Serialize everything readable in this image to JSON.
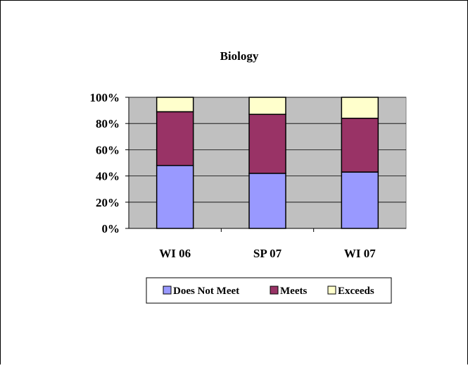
{
  "chart_data": {
    "type": "bar",
    "stacked": true,
    "percent_stacked": true,
    "title": "Biology",
    "xlabel": "",
    "ylabel": "",
    "categories": [
      "WI 06",
      "SP 07",
      "WI 07"
    ],
    "series": [
      {
        "name": "Does Not Meet",
        "color": "#9999ff",
        "values": [
          48,
          42,
          43
        ]
      },
      {
        "name": "Meets",
        "color": "#993366",
        "values": [
          41,
          45,
          41
        ]
      },
      {
        "name": "Exceeds",
        "color": "#ffffcc",
        "values": [
          11,
          13,
          16
        ]
      }
    ],
    "ylim": [
      0,
      100
    ],
    "yticks": [
      "0%",
      "20%",
      "40%",
      "60%",
      "80%",
      "100%"
    ],
    "grid": true,
    "plot_background": "#c0c0c0",
    "legend_position": "bottom"
  }
}
